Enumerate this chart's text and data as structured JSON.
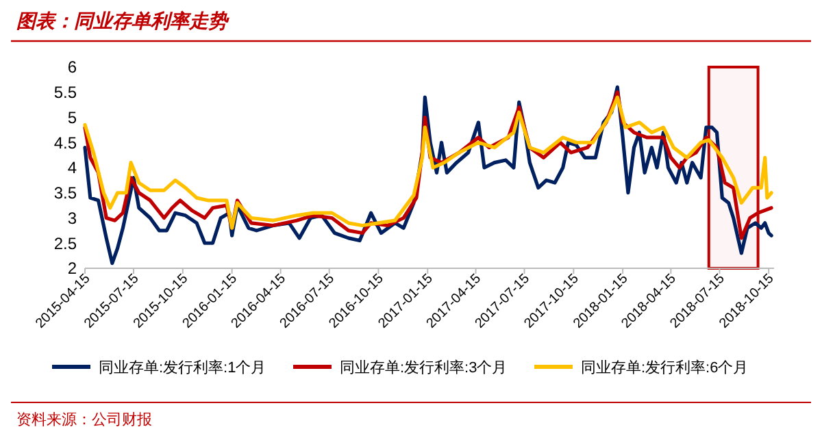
{
  "chart_data": {
    "type": "line",
    "title": "图表：同业存单利率走势",
    "annotations": [
      "资料来源：公司财报"
    ],
    "xlim": [
      "2015-04-15",
      "2018-10-25"
    ],
    "xticks": [
      "2015-04-15",
      "2015-07-15",
      "2015-10-15",
      "2016-01-15",
      "2016-04-15",
      "2016-07-15",
      "2016-10-15",
      "2017-01-15",
      "2017-04-15",
      "2017-07-15",
      "2017-10-15",
      "2018-01-15",
      "2018-04-15",
      "2018-07-15",
      "2018-10-15"
    ],
    "ylim": [
      2,
      6
    ],
    "yticks": [
      2,
      2.5,
      3,
      3.5,
      4,
      4.5,
      5,
      5.5,
      6
    ],
    "bands": [
      {
        "axis": "x",
        "from": "2018-06-25",
        "to": "2018-09-25",
        "color": "#c00000"
      }
    ],
    "grid": false,
    "legend": "bottom",
    "marker": "none",
    "line_style": "solid",
    "series": [
      {
        "name": "同业存单:发行利率:1个月",
        "color": "#002060",
        "x": [
          "2015-04-15",
          "2015-04-25",
          "2015-05-10",
          "2015-05-25",
          "2015-06-05",
          "2015-06-15",
          "2015-06-25",
          "2015-07-05",
          "2015-07-15",
          "2015-07-25",
          "2015-08-15",
          "2015-09-01",
          "2015-09-15",
          "2015-10-01",
          "2015-10-20",
          "2015-11-10",
          "2015-11-25",
          "2015-12-10",
          "2015-12-25",
          "2016-01-10",
          "2016-01-15",
          "2016-01-25",
          "2016-02-15",
          "2016-03-01",
          "2016-04-01",
          "2016-05-01",
          "2016-05-20",
          "2016-06-10",
          "2016-07-01",
          "2016-07-25",
          "2016-08-20",
          "2016-09-10",
          "2016-10-01",
          "2016-10-20",
          "2016-11-15",
          "2016-12-01",
          "2016-12-20",
          "2017-01-05",
          "2017-01-10",
          "2017-01-20",
          "2017-02-01",
          "2017-02-10",
          "2017-02-20",
          "2017-03-10",
          "2017-04-01",
          "2017-04-20",
          "2017-05-01",
          "2017-05-20",
          "2017-06-10",
          "2017-06-25",
          "2017-07-05",
          "2017-07-15",
          "2017-07-25",
          "2017-08-10",
          "2017-08-25",
          "2017-09-10",
          "2017-09-25",
          "2017-10-05",
          "2017-10-20",
          "2017-11-05",
          "2017-11-25",
          "2017-12-10",
          "2017-12-25",
          "2018-01-05",
          "2018-01-15",
          "2018-01-25",
          "2018-02-05",
          "2018-02-15",
          "2018-02-25",
          "2018-03-10",
          "2018-03-20",
          "2018-04-01",
          "2018-04-10",
          "2018-04-25",
          "2018-05-05",
          "2018-05-15",
          "2018-05-25",
          "2018-06-10",
          "2018-06-20",
          "2018-07-01",
          "2018-07-10",
          "2018-07-20",
          "2018-08-01",
          "2018-08-10",
          "2018-08-25",
          "2018-09-05",
          "2018-09-20",
          "2018-10-01",
          "2018-10-08",
          "2018-10-15",
          "2018-10-20"
        ],
        "values": [
          4.4,
          3.4,
          3.35,
          2.6,
          2.1,
          2.4,
          2.8,
          3.3,
          3.8,
          3.2,
          3.0,
          2.75,
          2.75,
          3.1,
          3.05,
          2.9,
          2.5,
          2.5,
          3.0,
          3.1,
          2.65,
          3.25,
          2.8,
          2.75,
          2.85,
          2.9,
          2.6,
          3.0,
          3.05,
          2.7,
          2.6,
          2.55,
          3.1,
          2.7,
          2.9,
          2.8,
          3.3,
          4.3,
          5.4,
          4.5,
          3.9,
          4.5,
          3.9,
          4.1,
          4.3,
          4.9,
          4.0,
          4.1,
          4.15,
          4.0,
          5.3,
          4.8,
          4.1,
          3.6,
          3.75,
          3.7,
          4.0,
          4.5,
          4.45,
          4.2,
          4.2,
          4.9,
          5.1,
          5.6,
          4.6,
          3.5,
          4.4,
          4.7,
          3.9,
          4.4,
          4.0,
          4.7,
          4.0,
          3.7,
          4.1,
          3.7,
          4.1,
          3.8,
          4.8,
          4.8,
          4.7,
          3.4,
          3.3,
          3.0,
          2.3,
          2.8,
          2.9,
          2.8,
          2.9,
          2.7,
          2.65
        ]
      },
      {
        "name": "同业存单:发行利率:3个月",
        "color": "#c00000",
        "x": [
          "2015-04-15",
          "2015-04-25",
          "2015-05-10",
          "2015-05-25",
          "2015-06-10",
          "2015-06-25",
          "2015-07-10",
          "2015-07-25",
          "2015-08-15",
          "2015-09-10",
          "2015-09-25",
          "2015-10-10",
          "2015-11-01",
          "2015-11-25",
          "2015-12-10",
          "2016-01-05",
          "2016-01-15",
          "2016-01-25",
          "2016-02-20",
          "2016-04-01",
          "2016-05-15",
          "2016-06-15",
          "2016-07-20",
          "2016-08-20",
          "2016-09-15",
          "2016-10-01",
          "2016-11-01",
          "2016-12-01",
          "2016-12-25",
          "2017-01-05",
          "2017-01-10",
          "2017-01-20",
          "2017-02-10",
          "2017-03-15",
          "2017-04-20",
          "2017-05-10",
          "2017-06-15",
          "2017-07-05",
          "2017-07-25",
          "2017-08-20",
          "2017-09-20",
          "2017-10-10",
          "2017-11-10",
          "2017-12-15",
          "2018-01-05",
          "2018-01-15",
          "2018-02-05",
          "2018-03-01",
          "2018-04-01",
          "2018-04-15",
          "2018-05-01",
          "2018-05-15",
          "2018-06-01",
          "2018-06-20",
          "2018-07-10",
          "2018-07-25",
          "2018-08-10",
          "2018-08-25",
          "2018-09-10",
          "2018-09-25",
          "2018-10-20"
        ],
        "values": [
          4.8,
          4.2,
          3.9,
          3.0,
          2.95,
          3.1,
          3.8,
          3.5,
          3.35,
          3.0,
          3.2,
          3.35,
          3.15,
          3.0,
          3.2,
          3.25,
          2.8,
          3.35,
          2.9,
          2.85,
          2.95,
          3.05,
          3.0,
          2.75,
          2.7,
          2.9,
          2.85,
          3.0,
          3.4,
          4.3,
          5.0,
          4.2,
          4.1,
          4.3,
          4.6,
          4.4,
          4.6,
          5.2,
          4.4,
          4.2,
          4.5,
          4.3,
          4.4,
          4.9,
          5.5,
          4.9,
          4.7,
          4.6,
          4.6,
          4.2,
          4.0,
          4.2,
          4.3,
          4.6,
          4.4,
          3.7,
          3.6,
          2.6,
          3.0,
          3.1,
          3.2
        ]
      },
      {
        "name": "同业存单:发行利率:6个月",
        "color": "#ffc000",
        "x": [
          "2015-04-15",
          "2015-05-01",
          "2015-05-20",
          "2015-06-01",
          "2015-06-15",
          "2015-07-01",
          "2015-07-10",
          "2015-07-25",
          "2015-08-15",
          "2015-09-10",
          "2015-10-01",
          "2015-10-20",
          "2015-11-10",
          "2015-12-01",
          "2016-01-05",
          "2016-01-15",
          "2016-01-25",
          "2016-02-20",
          "2016-04-01",
          "2016-05-15",
          "2016-06-15",
          "2016-07-20",
          "2016-08-20",
          "2016-09-15",
          "2016-10-15",
          "2016-11-15",
          "2016-12-20",
          "2017-01-05",
          "2017-01-10",
          "2017-01-25",
          "2017-02-15",
          "2017-03-15",
          "2017-04-20",
          "2017-05-20",
          "2017-06-25",
          "2017-07-05",
          "2017-07-25",
          "2017-08-20",
          "2017-09-25",
          "2017-10-20",
          "2017-11-20",
          "2017-12-20",
          "2018-01-05",
          "2018-01-20",
          "2018-02-15",
          "2018-03-10",
          "2018-04-01",
          "2018-04-20",
          "2018-05-15",
          "2018-06-10",
          "2018-06-25",
          "2018-07-20",
          "2018-08-10",
          "2018-08-25",
          "2018-09-15",
          "2018-10-01",
          "2018-10-08",
          "2018-10-12",
          "2018-10-20"
        ],
        "values": [
          4.85,
          4.3,
          3.5,
          3.2,
          3.5,
          3.5,
          4.1,
          3.7,
          3.55,
          3.55,
          3.75,
          3.6,
          3.4,
          3.35,
          3.35,
          2.8,
          3.3,
          3.0,
          2.95,
          3.05,
          3.1,
          3.1,
          2.9,
          2.85,
          2.9,
          2.95,
          3.45,
          4.2,
          4.8,
          4.0,
          4.1,
          4.3,
          4.5,
          4.4,
          4.7,
          5.1,
          4.4,
          4.3,
          4.6,
          4.5,
          4.5,
          5.0,
          5.4,
          4.8,
          4.9,
          4.7,
          4.8,
          4.4,
          4.2,
          4.5,
          4.55,
          4.2,
          3.8,
          3.3,
          3.6,
          3.6,
          4.2,
          3.4,
          3.5
        ]
      }
    ]
  }
}
